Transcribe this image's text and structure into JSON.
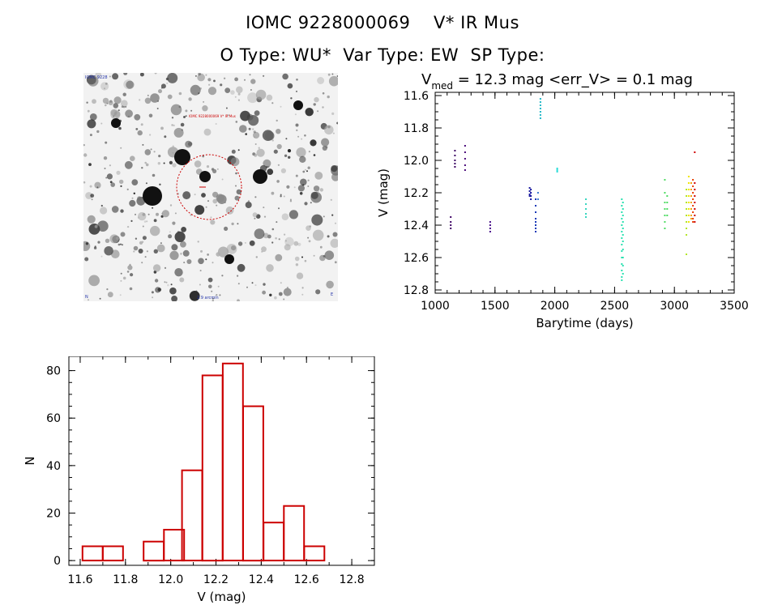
{
  "header": {
    "line1": "IOMC 9228000069    V* IR Mus",
    "line2": "O Type: WU*  Var Type: EW  SP Type:"
  },
  "image_panel": {
    "corner_label_top_left": "IOMC 9228",
    "circle_label": "IOMC 9228000069 V* IR Mus",
    "bottom_label_left": "N",
    "bottom_label_center": "2.9 arcmin",
    "bottom_label_right": "E"
  },
  "chart_data": [
    {
      "type": "scatter",
      "title_parts": {
        "v": "V",
        "sub": "med",
        "rest": " = 12.3 mag <err_V> = 0.1 mag"
      },
      "xlabel": "Barytime (days)",
      "ylabel": "V (mag)",
      "xlim": [
        1000,
        3500
      ],
      "ylim": [
        12.82,
        11.58
      ],
      "y_inverted": true,
      "x_ticks": [
        1000,
        1500,
        2000,
        2500,
        3000,
        3500
      ],
      "y_ticks": [
        11.6,
        11.8,
        12.0,
        12.2,
        12.4,
        12.6,
        12.8
      ],
      "y_tick_labels": [
        "11.6",
        "11.8",
        "12.0",
        "12.2",
        "12.4",
        "12.6",
        "12.8"
      ],
      "grid": false,
      "groups": [
        {
          "x": 1130,
          "y": [
            12.35,
            12.38,
            12.4,
            12.42
          ],
          "color": "#3c0064"
        },
        {
          "x": 1165,
          "y": [
            11.94,
            11.97,
            12.0,
            12.02,
            12.04
          ],
          "color": "#3c0064"
        },
        {
          "x": 1250,
          "y": [
            11.91,
            11.95,
            11.99,
            12.03,
            12.06
          ],
          "color": "#4a0a7a"
        },
        {
          "x": 1460,
          "y": [
            12.38,
            12.4,
            12.42,
            12.44
          ],
          "color": "#48108a"
        },
        {
          "x": 1790,
          "y": [
            12.17,
            12.19,
            12.21,
            12.22
          ],
          "color": "#1a1aa0"
        },
        {
          "x": 1800,
          "y": [
            12.18,
            12.2,
            12.22,
            12.24
          ],
          "color": "#1a1aa0"
        },
        {
          "x": 1840,
          "y": [
            12.24,
            12.28,
            12.32,
            12.36,
            12.38,
            12.4,
            12.42,
            12.44
          ],
          "color": "#1a3ab8"
        },
        {
          "x": 1860,
          "y": [
            12.2,
            12.24
          ],
          "color": "#3a7ad0"
        },
        {
          "x": 1880,
          "y": [
            11.62,
            11.64,
            11.66,
            11.68,
            11.7,
            11.72,
            11.74
          ],
          "color": "#22b8c8"
        },
        {
          "x": 2020,
          "y": [
            12.05,
            12.06,
            12.07
          ],
          "color": "#2adcd8"
        },
        {
          "x": 2260,
          "y": [
            12.24,
            12.27,
            12.3,
            12.33,
            12.35
          ],
          "color": "#38d6c0"
        },
        {
          "x": 2560,
          "y": [
            12.24,
            12.28,
            12.32,
            12.36,
            12.4,
            12.44,
            12.48,
            12.52,
            12.56,
            12.6,
            12.64,
            12.68,
            12.72,
            12.74
          ],
          "color": "#2ae0b0"
        },
        {
          "x": 2570,
          "y": [
            12.26,
            12.3,
            12.34,
            12.38,
            12.42,
            12.46,
            12.5,
            12.55,
            12.6,
            12.65,
            12.7
          ],
          "color": "#2ae0b0"
        },
        {
          "x": 2920,
          "y": [
            12.12,
            12.2,
            12.26,
            12.3,
            12.34,
            12.38,
            12.42
          ],
          "color": "#50dc64"
        },
        {
          "x": 2940,
          "y": [
            12.22,
            12.26,
            12.3,
            12.34
          ],
          "color": "#50dc64"
        },
        {
          "x": 3100,
          "y": [
            12.18,
            12.22,
            12.26,
            12.3,
            12.34,
            12.38,
            12.42,
            12.46,
            12.58
          ],
          "color": "#b4e628"
        },
        {
          "x": 3120,
          "y": [
            12.1,
            12.14,
            12.18,
            12.22,
            12.26,
            12.3,
            12.34,
            12.38
          ],
          "color": "#f0e600"
        },
        {
          "x": 3140,
          "y": [
            12.14,
            12.18,
            12.22,
            12.26,
            12.3,
            12.34,
            12.36
          ],
          "color": "#f0a000"
        },
        {
          "x": 3155,
          "y": [
            12.12,
            12.16,
            12.2,
            12.24,
            12.28,
            12.32,
            12.36,
            12.38
          ],
          "color": "#e84000"
        },
        {
          "x": 3170,
          "y": [
            11.95,
            12.14,
            12.18,
            12.22,
            12.26,
            12.3,
            12.34,
            12.38
          ],
          "color": "#d00000"
        }
      ]
    },
    {
      "type": "bar",
      "xlabel": "V (mag)",
      "ylabel": "N",
      "xlim": [
        11.55,
        12.9
      ],
      "ylim": [
        -2,
        86
      ],
      "x_ticks": [
        11.6,
        11.8,
        12.0,
        12.2,
        12.4,
        12.6,
        12.8
      ],
      "x_tick_labels": [
        "11.6",
        "11.8",
        "12.0",
        "12.2",
        "12.4",
        "12.6",
        "12.8"
      ],
      "y_ticks": [
        0,
        20,
        40,
        60,
        80
      ],
      "bin_width": 0.089,
      "bin_edges_start": [
        11.61,
        11.7,
        11.79,
        11.88,
        11.97,
        12.05,
        12.14,
        12.23,
        12.32,
        12.41,
        12.5,
        12.59,
        12.68
      ],
      "values": [
        6,
        6,
        0,
        8,
        13,
        38,
        78,
        83,
        65,
        16,
        23,
        6,
        0
      ],
      "color": "#cc0000"
    }
  ]
}
